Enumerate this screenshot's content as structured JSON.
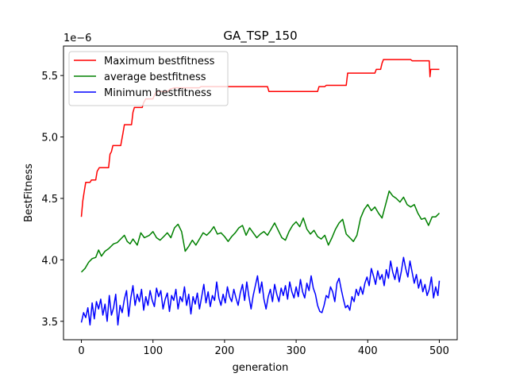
{
  "chart_data": {
    "type": "line",
    "title": "GA_TSP_150",
    "xlabel": "generation",
    "ylabel": "BestFitness",
    "y_offset_label": "1e−6",
    "y_scale": 1e-06,
    "xlim": [
      -25,
      525
    ],
    "ylim": [
      3.35,
      5.74
    ],
    "x_ticks": [
      0,
      100,
      200,
      300,
      400,
      500
    ],
    "y_ticks": [
      3.5,
      4.0,
      4.5,
      5.0,
      5.5
    ],
    "y_tick_labels": [
      "3.5",
      "4.0",
      "4.5",
      "5.0",
      "5.5"
    ],
    "grid": false,
    "legend_position": "top-left",
    "series": [
      {
        "name": "Maximum bestfitness",
        "color": "#ff0000",
        "points": [
          [
            0,
            4.35
          ],
          [
            2,
            4.48
          ],
          [
            4,
            4.56
          ],
          [
            6,
            4.63
          ],
          [
            12,
            4.63
          ],
          [
            14,
            4.65
          ],
          [
            20,
            4.65
          ],
          [
            22,
            4.72
          ],
          [
            25,
            4.75
          ],
          [
            38,
            4.75
          ],
          [
            40,
            4.86
          ],
          [
            42,
            4.88
          ],
          [
            44,
            4.93
          ],
          [
            55,
            4.93
          ],
          [
            58,
            5.03
          ],
          [
            60,
            5.1
          ],
          [
            70,
            5.1
          ],
          [
            72,
            5.2
          ],
          [
            74,
            5.24
          ],
          [
            85,
            5.24
          ],
          [
            87,
            5.28
          ],
          [
            90,
            5.31
          ],
          [
            100,
            5.31
          ],
          [
            102,
            5.34
          ],
          [
            105,
            5.37
          ],
          [
            120,
            5.37
          ],
          [
            124,
            5.39
          ],
          [
            130,
            5.4
          ],
          [
            165,
            5.4
          ],
          [
            167,
            5.41
          ],
          [
            260,
            5.41
          ],
          [
            262,
            5.37
          ],
          [
            330,
            5.37
          ],
          [
            332,
            5.41
          ],
          [
            340,
            5.41
          ],
          [
            342,
            5.42
          ],
          [
            370,
            5.42
          ],
          [
            372,
            5.52
          ],
          [
            410,
            5.52
          ],
          [
            412,
            5.55
          ],
          [
            418,
            5.55
          ],
          [
            420,
            5.6
          ],
          [
            422,
            5.63
          ],
          [
            460,
            5.63
          ],
          [
            462,
            5.62
          ],
          [
            486,
            5.62
          ],
          [
            487,
            5.49
          ],
          [
            488,
            5.55
          ],
          [
            500,
            5.55
          ]
        ]
      },
      {
        "name": "average bestfitness",
        "color": "#008000",
        "points": [
          [
            0,
            3.9
          ],
          [
            5,
            3.93
          ],
          [
            10,
            3.98
          ],
          [
            15,
            4.01
          ],
          [
            20,
            4.02
          ],
          [
            24,
            4.08
          ],
          [
            28,
            4.03
          ],
          [
            33,
            4.07
          ],
          [
            38,
            4.09
          ],
          [
            45,
            4.13
          ],
          [
            50,
            4.14
          ],
          [
            55,
            4.17
          ],
          [
            60,
            4.2
          ],
          [
            64,
            4.15
          ],
          [
            68,
            4.13
          ],
          [
            72,
            4.17
          ],
          [
            78,
            4.12
          ],
          [
            83,
            4.22
          ],
          [
            88,
            4.18
          ],
          [
            95,
            4.2
          ],
          [
            100,
            4.23
          ],
          [
            105,
            4.18
          ],
          [
            110,
            4.16
          ],
          [
            115,
            4.19
          ],
          [
            120,
            4.22
          ],
          [
            125,
            4.18
          ],
          [
            130,
            4.26
          ],
          [
            135,
            4.29
          ],
          [
            140,
            4.23
          ],
          [
            145,
            4.07
          ],
          [
            150,
            4.11
          ],
          [
            155,
            4.16
          ],
          [
            160,
            4.12
          ],
          [
            165,
            4.17
          ],
          [
            170,
            4.22
          ],
          [
            175,
            4.2
          ],
          [
            180,
            4.23
          ],
          [
            185,
            4.27
          ],
          [
            190,
            4.21
          ],
          [
            195,
            4.22
          ],
          [
            200,
            4.19
          ],
          [
            205,
            4.15
          ],
          [
            210,
            4.19
          ],
          [
            215,
            4.22
          ],
          [
            220,
            4.26
          ],
          [
            225,
            4.28
          ],
          [
            230,
            4.2
          ],
          [
            235,
            4.26
          ],
          [
            240,
            4.22
          ],
          [
            245,
            4.18
          ],
          [
            250,
            4.21
          ],
          [
            255,
            4.23
          ],
          [
            260,
            4.2
          ],
          [
            265,
            4.25
          ],
          [
            270,
            4.3
          ],
          [
            275,
            4.24
          ],
          [
            280,
            4.18
          ],
          [
            285,
            4.16
          ],
          [
            290,
            4.23
          ],
          [
            295,
            4.28
          ],
          [
            300,
            4.31
          ],
          [
            305,
            4.27
          ],
          [
            310,
            4.34
          ],
          [
            315,
            4.25
          ],
          [
            320,
            4.21
          ],
          [
            325,
            4.24
          ],
          [
            330,
            4.19
          ],
          [
            335,
            4.17
          ],
          [
            340,
            4.2
          ],
          [
            345,
            4.12
          ],
          [
            350,
            4.18
          ],
          [
            355,
            4.25
          ],
          [
            360,
            4.3
          ],
          [
            365,
            4.33
          ],
          [
            370,
            4.21
          ],
          [
            375,
            4.18
          ],
          [
            380,
            4.15
          ],
          [
            385,
            4.2
          ],
          [
            390,
            4.34
          ],
          [
            395,
            4.41
          ],
          [
            400,
            4.45
          ],
          [
            405,
            4.4
          ],
          [
            410,
            4.43
          ],
          [
            415,
            4.38
          ],
          [
            420,
            4.34
          ],
          [
            425,
            4.45
          ],
          [
            430,
            4.56
          ],
          [
            435,
            4.52
          ],
          [
            440,
            4.5
          ],
          [
            445,
            4.47
          ],
          [
            450,
            4.51
          ],
          [
            455,
            4.45
          ],
          [
            460,
            4.43
          ],
          [
            465,
            4.45
          ],
          [
            470,
            4.38
          ],
          [
            475,
            4.33
          ],
          [
            480,
            4.34
          ],
          [
            485,
            4.28
          ],
          [
            490,
            4.35
          ],
          [
            495,
            4.35
          ],
          [
            500,
            4.38
          ]
        ]
      },
      {
        "name": "Minimum bestfitness",
        "color": "#0000ff",
        "points": [
          [
            0,
            3.49
          ],
          [
            3,
            3.57
          ],
          [
            6,
            3.53
          ],
          [
            9,
            3.61
          ],
          [
            12,
            3.47
          ],
          [
            15,
            3.65
          ],
          [
            18,
            3.52
          ],
          [
            21,
            3.66
          ],
          [
            24,
            3.6
          ],
          [
            27,
            3.68
          ],
          [
            30,
            3.55
          ],
          [
            33,
            3.64
          ],
          [
            36,
            3.5
          ],
          [
            39,
            3.71
          ],
          [
            42,
            3.55
          ],
          [
            45,
            3.61
          ],
          [
            48,
            3.72
          ],
          [
            51,
            3.47
          ],
          [
            54,
            3.63
          ],
          [
            57,
            3.57
          ],
          [
            60,
            3.68
          ],
          [
            63,
            3.75
          ],
          [
            66,
            3.54
          ],
          [
            69,
            3.69
          ],
          [
            72,
            3.79
          ],
          [
            75,
            3.63
          ],
          [
            78,
            3.72
          ],
          [
            81,
            3.66
          ],
          [
            84,
            3.76
          ],
          [
            87,
            3.59
          ],
          [
            90,
            3.7
          ],
          [
            93,
            3.63
          ],
          [
            96,
            3.75
          ],
          [
            99,
            3.67
          ],
          [
            102,
            3.62
          ],
          [
            105,
            3.77
          ],
          [
            108,
            3.7
          ],
          [
            111,
            3.75
          ],
          [
            114,
            3.6
          ],
          [
            117,
            3.68
          ],
          [
            120,
            3.73
          ],
          [
            123,
            3.58
          ],
          [
            126,
            3.71
          ],
          [
            129,
            3.67
          ],
          [
            132,
            3.76
          ],
          [
            135,
            3.6
          ],
          [
            138,
            3.7
          ],
          [
            141,
            3.66
          ],
          [
            144,
            3.78
          ],
          [
            147,
            3.63
          ],
          [
            150,
            3.72
          ],
          [
            153,
            3.56
          ],
          [
            156,
            3.7
          ],
          [
            159,
            3.64
          ],
          [
            162,
            3.73
          ],
          [
            165,
            3.6
          ],
          [
            168,
            3.7
          ],
          [
            171,
            3.8
          ],
          [
            174,
            3.65
          ],
          [
            177,
            3.74
          ],
          [
            180,
            3.62
          ],
          [
            183,
            3.71
          ],
          [
            186,
            3.67
          ],
          [
            189,
            3.82
          ],
          [
            192,
            3.69
          ],
          [
            195,
            3.63
          ],
          [
            198,
            3.72
          ],
          [
            201,
            3.65
          ],
          [
            204,
            3.78
          ],
          [
            207,
            3.7
          ],
          [
            210,
            3.66
          ],
          [
            213,
            3.76
          ],
          [
            216,
            3.69
          ],
          [
            219,
            3.63
          ],
          [
            222,
            3.73
          ],
          [
            225,
            3.8
          ],
          [
            228,
            3.67
          ],
          [
            231,
            3.82
          ],
          [
            234,
            3.7
          ],
          [
            237,
            3.6
          ],
          [
            240,
            3.71
          ],
          [
            243,
            3.79
          ],
          [
            246,
            3.87
          ],
          [
            249,
            3.73
          ],
          [
            252,
            3.82
          ],
          [
            255,
            3.68
          ],
          [
            258,
            3.6
          ],
          [
            261,
            3.7
          ],
          [
            264,
            3.76
          ],
          [
            267,
            3.66
          ],
          [
            270,
            3.8
          ],
          [
            273,
            3.72
          ],
          [
            276,
            3.66
          ],
          [
            279,
            3.77
          ],
          [
            282,
            3.71
          ],
          [
            285,
            3.79
          ],
          [
            288,
            3.68
          ],
          [
            291,
            3.82
          ],
          [
            294,
            3.74
          ],
          [
            297,
            3.69
          ],
          [
            300,
            3.78
          ],
          [
            303,
            3.7
          ],
          [
            306,
            3.84
          ],
          [
            309,
            3.74
          ],
          [
            312,
            3.69
          ],
          [
            315,
            3.81
          ],
          [
            318,
            3.75
          ],
          [
            321,
            3.87
          ],
          [
            324,
            3.77
          ],
          [
            327,
            3.72
          ],
          [
            330,
            3.63
          ],
          [
            333,
            3.58
          ],
          [
            336,
            3.57
          ],
          [
            339,
            3.63
          ],
          [
            342,
            3.71
          ],
          [
            345,
            3.69
          ],
          [
            348,
            3.78
          ],
          [
            351,
            3.74
          ],
          [
            354,
            3.66
          ],
          [
            357,
            3.81
          ],
          [
            360,
            3.85
          ],
          [
            363,
            3.76
          ],
          [
            366,
            3.68
          ],
          [
            369,
            3.61
          ],
          [
            372,
            3.63
          ],
          [
            375,
            3.59
          ],
          [
            378,
            3.7
          ],
          [
            381,
            3.66
          ],
          [
            384,
            3.76
          ],
          [
            387,
            3.71
          ],
          [
            390,
            3.78
          ],
          [
            393,
            3.72
          ],
          [
            396,
            3.81
          ],
          [
            399,
            3.86
          ],
          [
            402,
            3.79
          ],
          [
            405,
            3.93
          ],
          [
            408,
            3.87
          ],
          [
            411,
            3.8
          ],
          [
            414,
            3.91
          ],
          [
            417,
            3.84
          ],
          [
            420,
            3.88
          ],
          [
            423,
            3.79
          ],
          [
            426,
            3.92
          ],
          [
            429,
            3.85
          ],
          [
            432,
            3.99
          ],
          [
            435,
            3.9
          ],
          [
            438,
            3.84
          ],
          [
            441,
            3.94
          ],
          [
            444,
            3.82
          ],
          [
            447,
            3.91
          ],
          [
            450,
            4.02
          ],
          [
            453,
            3.93
          ],
          [
            456,
            3.86
          ],
          [
            459,
            3.99
          ],
          [
            462,
            3.9
          ],
          [
            465,
            3.81
          ],
          [
            468,
            3.88
          ],
          [
            471,
            3.77
          ],
          [
            474,
            3.84
          ],
          [
            477,
            3.74
          ],
          [
            480,
            3.8
          ],
          [
            483,
            3.71
          ],
          [
            486,
            3.76
          ],
          [
            489,
            3.86
          ],
          [
            492,
            3.69
          ],
          [
            495,
            3.78
          ],
          [
            498,
            3.71
          ],
          [
            500,
            3.83
          ]
        ]
      }
    ]
  }
}
